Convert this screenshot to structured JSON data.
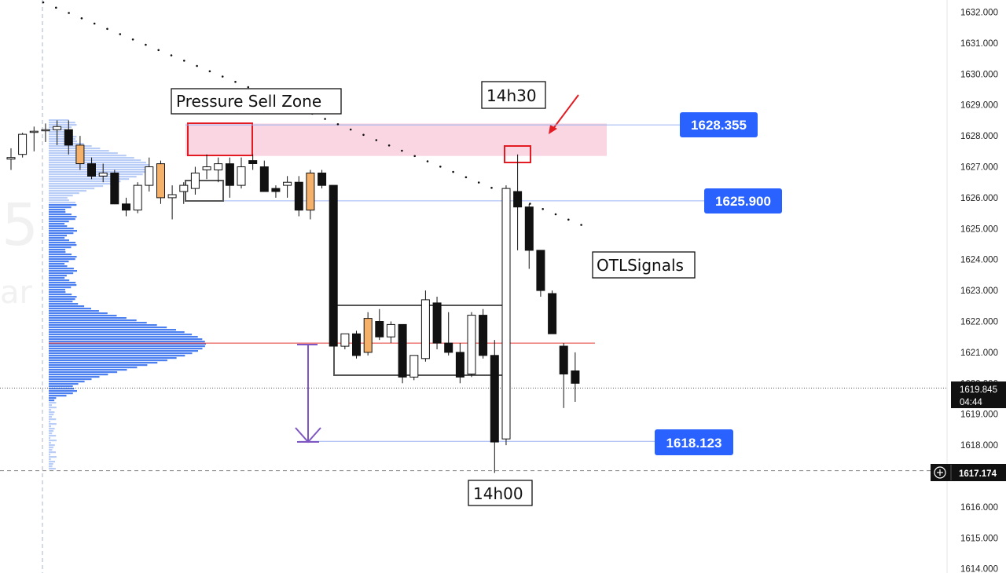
{
  "chart_data": {
    "type": "candlestick",
    "y_axis": {
      "min": 1614.0,
      "max": 1632.0,
      "step": 1.0,
      "position": "right",
      "tick_labels": [
        "1632.000",
        "1631.000",
        "1630.000",
        "1629.000",
        "1628.000",
        "1627.000",
        "1626.000",
        "1625.000",
        "1624.000",
        "1623.000",
        "1622.000",
        "1621.000",
        "1620.000",
        "1619.000",
        "1618.000",
        "1617.000",
        "1616.000",
        "1615.000",
        "1614.000"
      ]
    },
    "candles": [
      {
        "o": 1627.25,
        "h": 1627.6,
        "l": 1626.9,
        "c": 1627.3,
        "color": "hollow"
      },
      {
        "o": 1627.4,
        "h": 1628.1,
        "l": 1627.3,
        "c": 1628.05,
        "color": "hollow"
      },
      {
        "o": 1628.15,
        "h": 1628.3,
        "l": 1627.5,
        "c": 1628.15,
        "color": "hollow"
      },
      {
        "o": 1628.2,
        "h": 1628.4,
        "l": 1627.8,
        "c": 1628.2,
        "color": "hollow"
      },
      {
        "o": 1628.2,
        "h": 1628.5,
        "l": 1627.7,
        "c": 1628.3,
        "color": "hollow"
      },
      {
        "o": 1628.2,
        "h": 1628.5,
        "l": 1627.4,
        "c": 1627.7,
        "color": "black"
      },
      {
        "o": 1627.7,
        "h": 1628.0,
        "l": 1626.9,
        "c": 1627.1,
        "color": "orange"
      },
      {
        "o": 1627.1,
        "h": 1627.3,
        "l": 1626.6,
        "c": 1626.7,
        "color": "black"
      },
      {
        "o": 1626.7,
        "h": 1627.1,
        "l": 1626.5,
        "c": 1626.8,
        "color": "hollow"
      },
      {
        "o": 1626.8,
        "h": 1626.9,
        "l": 1625.8,
        "c": 1625.8,
        "color": "black"
      },
      {
        "o": 1625.8,
        "h": 1626.0,
        "l": 1625.4,
        "c": 1625.6,
        "color": "black"
      },
      {
        "o": 1625.6,
        "h": 1626.5,
        "l": 1625.5,
        "c": 1626.4,
        "color": "hollow"
      },
      {
        "o": 1626.4,
        "h": 1627.3,
        "l": 1626.2,
        "c": 1627.0,
        "color": "hollow"
      },
      {
        "o": 1626.0,
        "h": 1627.2,
        "l": 1625.8,
        "c": 1627.1,
        "color": "orange"
      },
      {
        "o": 1626.0,
        "h": 1626.4,
        "l": 1625.3,
        "c": 1626.1,
        "color": "hollow"
      },
      {
        "o": 1626.2,
        "h": 1626.5,
        "l": 1625.8,
        "c": 1626.4,
        "color": "hollow"
      },
      {
        "o": 1626.3,
        "h": 1627.0,
        "l": 1626.1,
        "c": 1626.8,
        "color": "hollow"
      },
      {
        "o": 1626.9,
        "h": 1627.4,
        "l": 1626.6,
        "c": 1627.0,
        "color": "hollow"
      },
      {
        "o": 1626.9,
        "h": 1627.3,
        "l": 1626.5,
        "c": 1627.1,
        "color": "hollow"
      },
      {
        "o": 1627.1,
        "h": 1627.3,
        "l": 1626.0,
        "c": 1626.4,
        "color": "black"
      },
      {
        "o": 1626.4,
        "h": 1627.3,
        "l": 1626.3,
        "c": 1627.0,
        "color": "hollow"
      },
      {
        "o": 1627.2,
        "h": 1627.4,
        "l": 1626.9,
        "c": 1627.1,
        "color": "black"
      },
      {
        "o": 1627.0,
        "h": 1627.2,
        "l": 1626.2,
        "c": 1626.2,
        "color": "black"
      },
      {
        "o": 1626.2,
        "h": 1626.4,
        "l": 1626.0,
        "c": 1626.3,
        "color": "black"
      },
      {
        "o": 1626.4,
        "h": 1626.7,
        "l": 1626.0,
        "c": 1626.5,
        "color": "hollow"
      },
      {
        "o": 1626.5,
        "h": 1626.7,
        "l": 1625.4,
        "c": 1625.6,
        "color": "black"
      },
      {
        "o": 1625.6,
        "h": 1626.9,
        "l": 1625.3,
        "c": 1626.8,
        "color": "orange"
      },
      {
        "o": 1626.8,
        "h": 1626.9,
        "l": 1626.3,
        "c": 1626.4,
        "color": "black"
      },
      {
        "o": 1626.4,
        "h": 1626.4,
        "l": 1621.2,
        "c": 1621.2,
        "color": "black"
      },
      {
        "o": 1621.2,
        "h": 1621.6,
        "l": 1621.1,
        "c": 1621.6,
        "color": "hollow"
      },
      {
        "o": 1621.6,
        "h": 1621.7,
        "l": 1620.8,
        "c": 1620.9,
        "color": "black"
      },
      {
        "o": 1621.0,
        "h": 1622.3,
        "l": 1620.9,
        "c": 1622.1,
        "color": "orange"
      },
      {
        "o": 1622.0,
        "h": 1622.4,
        "l": 1621.4,
        "c": 1621.5,
        "color": "black"
      },
      {
        "o": 1621.5,
        "h": 1622.0,
        "l": 1621.3,
        "c": 1621.9,
        "color": "hollow"
      },
      {
        "o": 1621.9,
        "h": 1621.9,
        "l": 1620.0,
        "c": 1620.2,
        "color": "black"
      },
      {
        "o": 1620.2,
        "h": 1620.9,
        "l": 1620.1,
        "c": 1620.9,
        "color": "hollow"
      },
      {
        "o": 1620.8,
        "h": 1623.0,
        "l": 1620.7,
        "c": 1622.7,
        "color": "hollow"
      },
      {
        "o": 1622.6,
        "h": 1622.8,
        "l": 1621.1,
        "c": 1621.3,
        "color": "black"
      },
      {
        "o": 1621.3,
        "h": 1622.3,
        "l": 1620.9,
        "c": 1621.0,
        "color": "black"
      },
      {
        "o": 1621.0,
        "h": 1621.3,
        "l": 1620.0,
        "c": 1620.2,
        "color": "black"
      },
      {
        "o": 1620.3,
        "h": 1622.3,
        "l": 1620.2,
        "c": 1622.2,
        "color": "hollow"
      },
      {
        "o": 1622.2,
        "h": 1622.4,
        "l": 1620.8,
        "c": 1620.9,
        "color": "black"
      },
      {
        "o": 1620.9,
        "h": 1621.4,
        "l": 1617.1,
        "c": 1618.1,
        "color": "black"
      },
      {
        "o": 1618.2,
        "h": 1626.4,
        "l": 1618.0,
        "c": 1626.3,
        "color": "hollow"
      },
      {
        "o": 1626.2,
        "h": 1627.4,
        "l": 1624.3,
        "c": 1625.7,
        "color": "black"
      },
      {
        "o": 1625.7,
        "h": 1625.8,
        "l": 1623.7,
        "c": 1624.3,
        "color": "black"
      },
      {
        "o": 1624.3,
        "h": 1624.3,
        "l": 1622.8,
        "c": 1623.0,
        "color": "black"
      },
      {
        "o": 1622.9,
        "h": 1623.0,
        "l": 1621.6,
        "c": 1621.6,
        "color": "black"
      },
      {
        "o": 1621.2,
        "h": 1621.3,
        "l": 1619.2,
        "c": 1620.3,
        "color": "black"
      },
      {
        "o": 1620.4,
        "h": 1621.0,
        "l": 1619.4,
        "c": 1620.0,
        "color": "black"
      }
    ],
    "volume_profile_poc": 1621.3,
    "levels": [
      {
        "value": "1628.355",
        "price": 1628.355,
        "style": "tag"
      },
      {
        "value": "1625.900",
        "price": 1625.9,
        "style": "tag"
      },
      {
        "value": "1618.123",
        "price": 1618.123,
        "style": "tag"
      }
    ],
    "current_price": {
      "value": "1619.845",
      "countdown": "04:44",
      "price": 1619.845
    },
    "crosshair": {
      "value": "1617.174",
      "price": 1617.174
    },
    "sell_zone": {
      "top": 1628.4,
      "bottom": 1627.35
    },
    "annotations": [
      "Pressure Sell Zone",
      "14h30",
      "OTLSignals",
      "14h00"
    ],
    "grid": false,
    "colors": {
      "tag_blue": "#2962ff",
      "zone_pink": "#f8c8d8",
      "profile_blue": "#4c7ff0",
      "poc_red": "#e53935",
      "arrow_purple": "#7e57c2",
      "orange_candle": "#f5b16a",
      "highlight_red": "#e31b23"
    }
  },
  "faded_watermark": {
    "digit": "5",
    "text": "ar"
  }
}
